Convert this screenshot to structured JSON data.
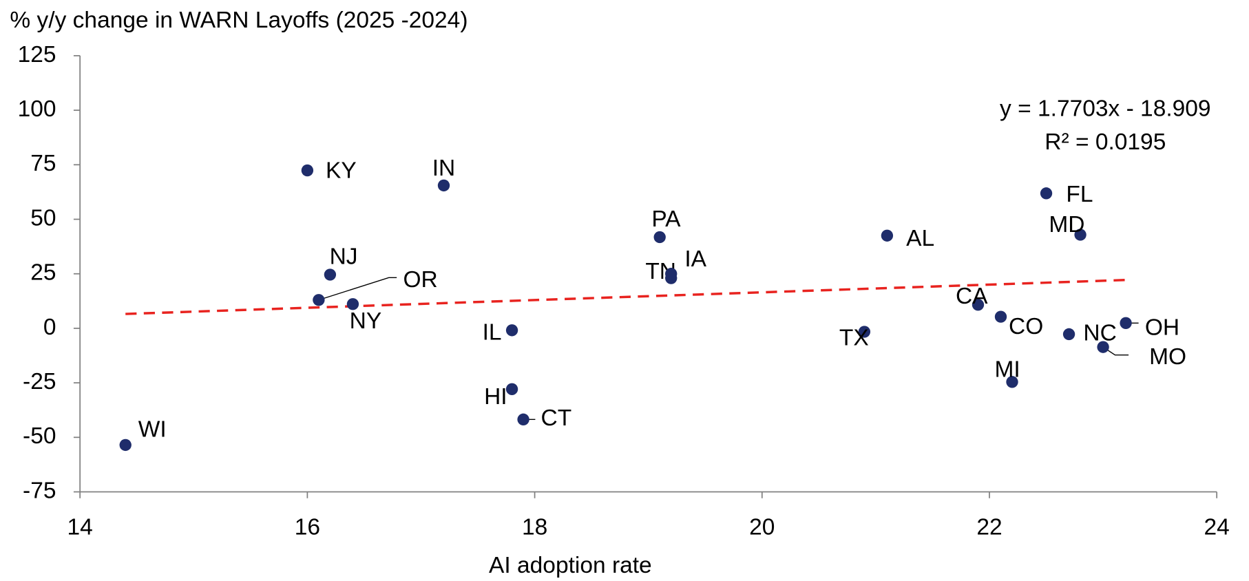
{
  "chart_data": {
    "type": "scatter",
    "title": "% y/y change in WARN Layoffs (2025 -2024)",
    "x_label": "AI adoption rate",
    "labels": [
      "WI",
      "KY",
      "IN",
      "NJ",
      "OR",
      "NY",
      "IL",
      "HI",
      "CT",
      "PA",
      "TN",
      "IA",
      "AL",
      "TX",
      "CA",
      "CO",
      "MI",
      "FL",
      "MD",
      "NC",
      "OH",
      "MO"
    ],
    "x": [
      14.4,
      16.0,
      17.2,
      16.2,
      16.1,
      16.4,
      17.8,
      17.8,
      17.9,
      19.1,
      19.2,
      19.2,
      21.1,
      20.9,
      21.9,
      22.1,
      22.2,
      22.5,
      22.8,
      22.7,
      23.2,
      23.0
    ],
    "values": [
      -53.5,
      72.4,
      65.5,
      24.6,
      13.0,
      11.1,
      -0.9,
      -27.9,
      -41.8,
      41.8,
      23.0,
      25.0,
      42.5,
      -1.6,
      10.8,
      5.3,
      -24.6,
      61.9,
      42.9,
      -2.7,
      2.4,
      -8.6
    ],
    "color": "#1f2d6b",
    "trendline": {
      "slope": 1.7703,
      "intercept": -18.909,
      "color": "#e8231f",
      "equation": "y = 1.7703x - 18.909",
      "r_squared": "R² = 0.0195"
    },
    "xlim": [
      14,
      24
    ],
    "xticks": [
      14,
      16,
      18,
      20,
      22,
      24
    ],
    "ylim": [
      -75,
      125
    ],
    "yticks": [
      -75,
      -50,
      -25,
      0,
      25,
      50,
      75,
      100,
      125
    ],
    "grid": false
  }
}
